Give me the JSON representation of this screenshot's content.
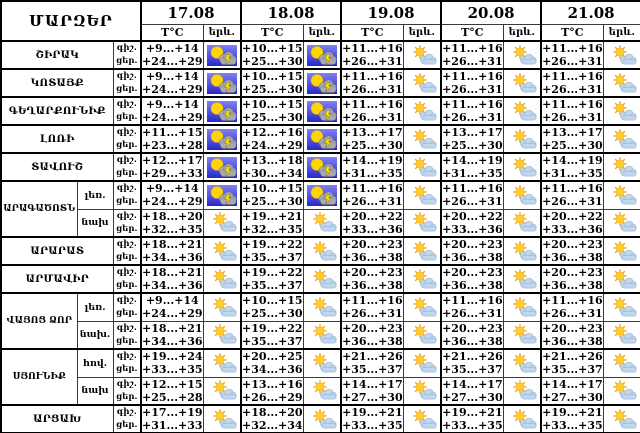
{
  "page": {
    "background": "#ffffff"
  },
  "table": {
    "corner_label": "ՄԱՐԶԵՐ",
    "dates": [
      "17.08",
      "18.08",
      "19.08",
      "20.08",
      "21.08"
    ],
    "temp_header": "T°C",
    "phenomenon_header": "երև.",
    "night_label": "գիշ.",
    "day_label": "ցեր.",
    "icon_legend": {
      "thunder": "sun-cloud-lightning",
      "partly": "sun-behind-cloud"
    },
    "colors": {
      "grid": "#000000",
      "text": "#000000",
      "thunder_bg_top": "#8080f8",
      "thunder_bg_bottom": "#2828c8",
      "sun": "#ffd500",
      "sun_rays": "#f2a81d",
      "storm_cloud": "#a8a8b0",
      "fair_cloud": "#c3d7ec",
      "lightning": "#ffe400"
    },
    "regions": [
      {
        "name": "ՇԻՐԱԿ",
        "zones": [
          {
            "zone": "",
            "days": [
              {
                "night": "+9...+14",
                "day": "+24...+29",
                "icon": "thunder"
              },
              {
                "night": "+10...+15",
                "day": "+25...+30",
                "icon": "thunder"
              },
              {
                "night": "+11...+16",
                "day": "+26...+31",
                "icon": "partly"
              },
              {
                "night": "+11...+16",
                "day": "+26...+31",
                "icon": "partly"
              },
              {
                "night": "+11...+16",
                "day": "+26...+31",
                "icon": "partly"
              }
            ]
          }
        ]
      },
      {
        "name": "ԿՈՏԱՅՔ",
        "zones": [
          {
            "zone": "",
            "days": [
              {
                "night": "+9...+14",
                "day": "+24...+29",
                "icon": "thunder"
              },
              {
                "night": "+10...+15",
                "day": "+25...+30",
                "icon": "thunder"
              },
              {
                "night": "+11...+16",
                "day": "+26...+31",
                "icon": "partly"
              },
              {
                "night": "+11...+16",
                "day": "+26...+31",
                "icon": "partly"
              },
              {
                "night": "+11...+16",
                "day": "+26...+31",
                "icon": "partly"
              }
            ]
          }
        ]
      },
      {
        "name": "ԳԵՂԱՐՔՈՒՆԻՔ",
        "zones": [
          {
            "zone": "",
            "days": [
              {
                "night": "+9...+14",
                "day": "+24...+29",
                "icon": "thunder"
              },
              {
                "night": "+10...+15",
                "day": "+25...+30",
                "icon": "thunder"
              },
              {
                "night": "+11...+16",
                "day": "+26...+31",
                "icon": "partly"
              },
              {
                "night": "+11...+16",
                "day": "+26...+31",
                "icon": "partly"
              },
              {
                "night": "+11...+16",
                "day": "+26...+31",
                "icon": "partly"
              }
            ]
          }
        ]
      },
      {
        "name": "ԼՈՌԻ",
        "zones": [
          {
            "zone": "",
            "days": [
              {
                "night": "+11...+15",
                "day": "+23...+28",
                "icon": "thunder"
              },
              {
                "night": "+12...+16",
                "day": "+24...+29",
                "icon": "thunder"
              },
              {
                "night": "+13...+17",
                "day": "+25...+30",
                "icon": "partly"
              },
              {
                "night": "+13...+17",
                "day": "+25...+30",
                "icon": "partly"
              },
              {
                "night": "+13...+17",
                "day": "+25...+30",
                "icon": "partly"
              }
            ]
          }
        ]
      },
      {
        "name": "ՏԱՎՈՒՇ",
        "zones": [
          {
            "zone": "",
            "days": [
              {
                "night": "+12...+17",
                "day": "+29...+33",
                "icon": "thunder"
              },
              {
                "night": "+13...+18",
                "day": "+30...+34",
                "icon": "thunder"
              },
              {
                "night": "+14...+19",
                "day": "+31...+35",
                "icon": "partly"
              },
              {
                "night": "+14...+19",
                "day": "+31...+35",
                "icon": "partly"
              },
              {
                "night": "+14...+19",
                "day": "+31...+35",
                "icon": "partly"
              }
            ]
          }
        ]
      },
      {
        "name": "ԱՐԱԳԱԾՈՏՆ",
        "zones": [
          {
            "zone": "լեռ.",
            "days": [
              {
                "night": "+9...+14",
                "day": "+24...+29",
                "icon": "thunder"
              },
              {
                "night": "+10...+15",
                "day": "+25...+30",
                "icon": "thunder"
              },
              {
                "night": "+11...+16",
                "day": "+26...+31",
                "icon": "partly"
              },
              {
                "night": "+11...+16",
                "day": "+26...+31",
                "icon": "partly"
              },
              {
                "night": "+11...+16",
                "day": "+26...+31",
                "icon": "partly"
              }
            ]
          },
          {
            "zone": "նախ",
            "days": [
              {
                "night": "+18...+20",
                "day": "+32...+35",
                "icon": "partly"
              },
              {
                "night": "+19...+21",
                "day": "+32...+35",
                "icon": "partly"
              },
              {
                "night": "+20...+22",
                "day": "+33...+36",
                "icon": "partly"
              },
              {
                "night": "+20...+22",
                "day": "+33...+36",
                "icon": "partly"
              },
              {
                "night": "+20...+22",
                "day": "+33...+36",
                "icon": "partly"
              }
            ]
          }
        ]
      },
      {
        "name": "ԱՐԱՐԱՏ",
        "zones": [
          {
            "zone": "",
            "days": [
              {
                "night": "+18...+21",
                "day": "+34...+36",
                "icon": "partly"
              },
              {
                "night": "+19...+22",
                "day": "+35...+37",
                "icon": "partly"
              },
              {
                "night": "+20...+23",
                "day": "+36...+38",
                "icon": "partly"
              },
              {
                "night": "+20...+23",
                "day": "+36...+38",
                "icon": "partly"
              },
              {
                "night": "+20...+23",
                "day": "+36...+38",
                "icon": "partly"
              }
            ]
          }
        ]
      },
      {
        "name": "ԱՐՄԱՎԻՐ",
        "zones": [
          {
            "zone": "",
            "days": [
              {
                "night": "+18...+21",
                "day": "+34...+36",
                "icon": "partly"
              },
              {
                "night": "+19...+22",
                "day": "+35...+37",
                "icon": "partly"
              },
              {
                "night": "+20...+23",
                "day": "+36...+38",
                "icon": "partly"
              },
              {
                "night": "+20...+23",
                "day": "+36...+38",
                "icon": "partly"
              },
              {
                "night": "+20...+23",
                "day": "+36...+38",
                "icon": "partly"
              }
            ]
          }
        ]
      },
      {
        "name": "ՎԱՅՈՑ ՁՈՐ",
        "zones": [
          {
            "zone": "լեռ.",
            "days": [
              {
                "night": "+9...+14",
                "day": "+24...+29",
                "icon": "partly"
              },
              {
                "night": "+10...+15",
                "day": "+25...+30",
                "icon": "partly"
              },
              {
                "night": "+11...+16",
                "day": "+26...+31",
                "icon": "partly"
              },
              {
                "night": "+11...+16",
                "day": "+26...+31",
                "icon": "partly"
              },
              {
                "night": "+11...+16",
                "day": "+26...+31",
                "icon": "partly"
              }
            ]
          },
          {
            "zone": "նախ.",
            "days": [
              {
                "night": "+18...+21",
                "day": "+34...+36",
                "icon": "partly"
              },
              {
                "night": "+19...+22",
                "day": "+35...+37",
                "icon": "partly"
              },
              {
                "night": "+20...+23",
                "day": "+36...+38",
                "icon": "partly"
              },
              {
                "night": "+20...+23",
                "day": "+36...+38",
                "icon": "partly"
              },
              {
                "night": "+20...+23",
                "day": "+36...+38",
                "icon": "partly"
              }
            ]
          }
        ]
      },
      {
        "name": "ՍՅՈՒՆԻՔ",
        "zones": [
          {
            "zone": "հով.",
            "days": [
              {
                "night": "+19...+24",
                "day": "+33...+35",
                "icon": "partly"
              },
              {
                "night": "+20...+25",
                "day": "+34...+36",
                "icon": "partly"
              },
              {
                "night": "+21...+26",
                "day": "+35...+37",
                "icon": "partly"
              },
              {
                "night": "+21...+26",
                "day": "+35...+37",
                "icon": "partly"
              },
              {
                "night": "+21...+26",
                "day": "+35...+37",
                "icon": "partly"
              }
            ]
          },
          {
            "zone": "նախ",
            "days": [
              {
                "night": "+12...+15",
                "day": "+25...+28",
                "icon": "partly"
              },
              {
                "night": "+13...+16",
                "day": "+26...+29",
                "icon": "partly"
              },
              {
                "night": "+14...+17",
                "day": "+27...+30",
                "icon": "partly"
              },
              {
                "night": "+14...+17",
                "day": "+27...+30",
                "icon": "partly"
              },
              {
                "night": "+14...+17",
                "day": "+27...+30",
                "icon": "partly"
              }
            ]
          }
        ]
      },
      {
        "name": "ԱՐՑԱԽ",
        "zones": [
          {
            "zone": "",
            "days": [
              {
                "night": "+17...+19",
                "day": "+31...+33",
                "icon": "partly"
              },
              {
                "night": "+18...+20",
                "day": "+32...+34",
                "icon": "partly"
              },
              {
                "night": "+19...+21",
                "day": "+33...+35",
                "icon": "partly"
              },
              {
                "night": "+19...+21",
                "day": "+33...+35",
                "icon": "partly"
              },
              {
                "night": "+19...+21",
                "day": "+33...+35",
                "icon": "partly"
              }
            ]
          }
        ]
      }
    ]
  }
}
